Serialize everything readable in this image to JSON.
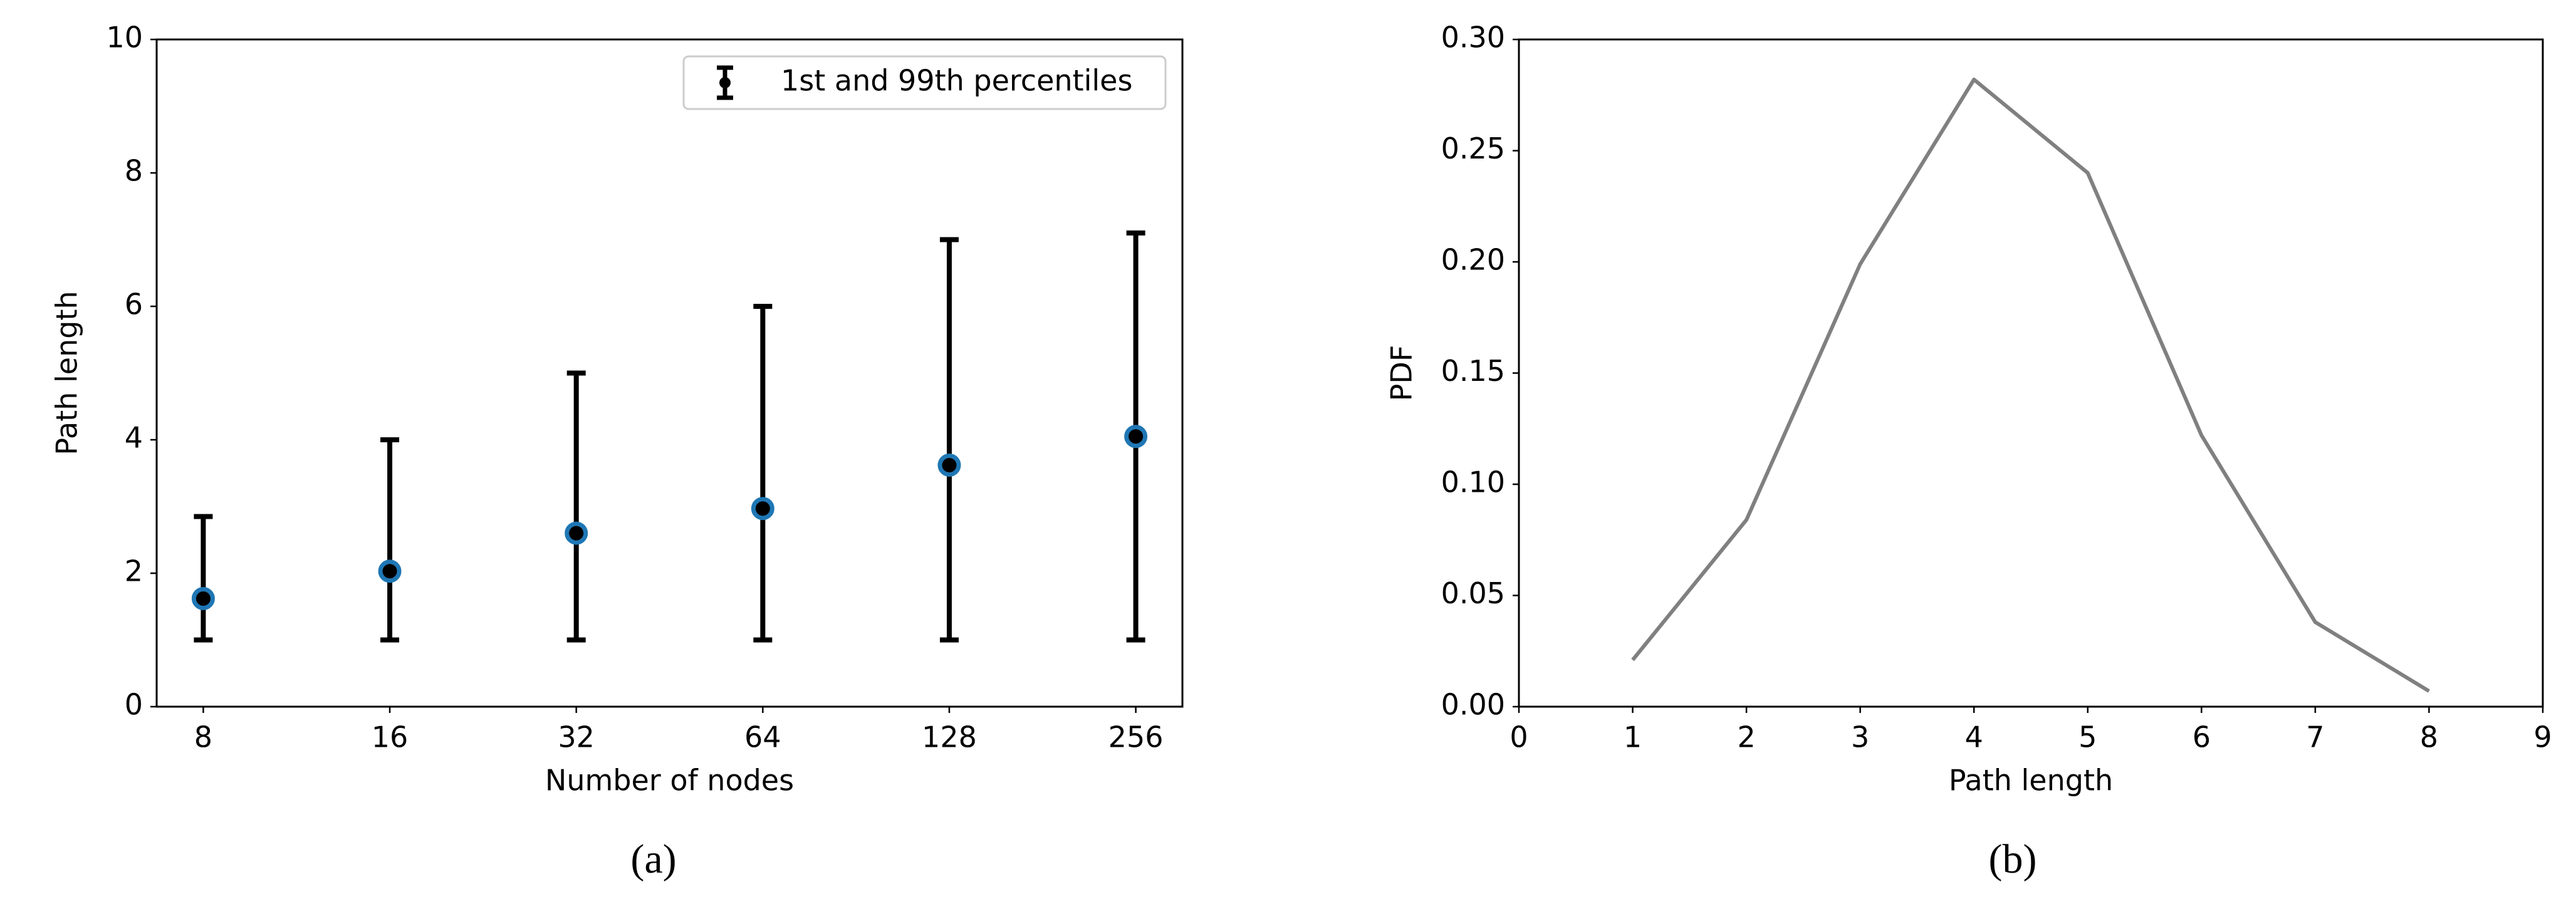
{
  "chart_data": [
    {
      "type": "errorbar",
      "caption": "(a)",
      "xlabel": "Number of nodes",
      "ylabel": "Path length",
      "categories": [
        "8",
        "16",
        "32",
        "64",
        "128",
        "256"
      ],
      "values": [
        1.62,
        2.03,
        2.6,
        2.97,
        3.62,
        4.05
      ],
      "lower": [
        1,
        1,
        1,
        1,
        1,
        1
      ],
      "upper": [
        2.85,
        4,
        5,
        6,
        7,
        7.1
      ],
      "legend": "1st and 99th percentiles",
      "legend_position": "upper right",
      "color": "#000000",
      "marker_edge_color": "#1f77b4",
      "ylim": [
        0,
        10
      ],
      "yticks": [
        0,
        2,
        4,
        6,
        8,
        10
      ]
    },
    {
      "type": "line",
      "caption": "(b)",
      "xlabel": "Path length",
      "ylabel": "PDF",
      "x": [
        1,
        2,
        3,
        4,
        5,
        6,
        7,
        8
      ],
      "values": [
        0.021,
        0.084,
        0.199,
        0.282,
        0.24,
        0.122,
        0.038,
        0.007
      ],
      "color": "#808080",
      "xlim": [
        0,
        9
      ],
      "xticks": [
        0,
        1,
        2,
        3,
        4,
        5,
        6,
        7,
        8,
        9
      ],
      "ylim": [
        0,
        0.3
      ],
      "yticks": [
        {
          "value": 0,
          "label": "0.00"
        },
        0.05,
        {
          "value": 0.1,
          "label": "0.10"
        },
        0.15,
        {
          "value": 0.2,
          "label": "0.20"
        },
        0.25,
        {
          "value": 0.3,
          "label": "0.30"
        }
      ]
    }
  ]
}
